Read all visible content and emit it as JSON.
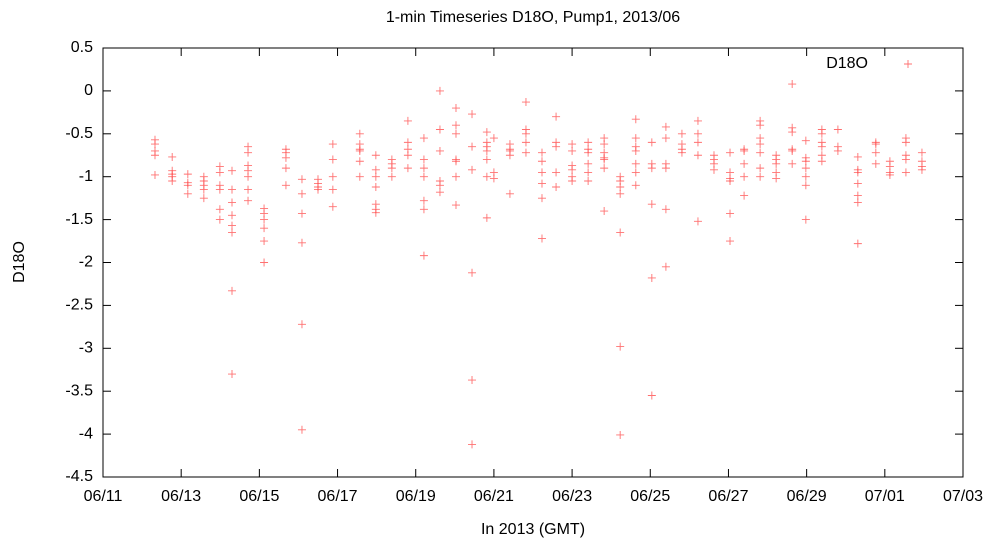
{
  "chart_data": {
    "type": "scatter",
    "title": "1-min Timeseries D18O, Pump1, 2013/06",
    "x_label": "In 2013 (GMT)",
    "y_label": "D18O",
    "legend": "top-right",
    "xlim": [
      11,
      33
    ],
    "xticks": [
      {
        "value": 11,
        "label": "06/11"
      },
      {
        "value": 13,
        "label": "06/13"
      },
      {
        "value": 15,
        "label": "06/15"
      },
      {
        "value": 17,
        "label": "06/17"
      },
      {
        "value": 19,
        "label": "06/19"
      },
      {
        "value": 21,
        "label": "06/21"
      },
      {
        "value": 23,
        "label": "06/23"
      },
      {
        "value": 25,
        "label": "06/25"
      },
      {
        "value": 27,
        "label": "06/27"
      },
      {
        "value": 29,
        "label": "06/29"
      },
      {
        "value": 31,
        "label": "07/01"
      },
      {
        "value": 33,
        "label": "07/03"
      }
    ],
    "ylim": [
      -4.5,
      0.5
    ],
    "yticks": [
      0.5,
      0,
      -0.5,
      -1,
      -1.5,
      -2,
      -2.5,
      -3,
      -3.5,
      -4,
      -4.5
    ],
    "series": [
      {
        "name": "D18O",
        "color": "#ff4040",
        "x": [
          12.33,
          12.33,
          12.33,
          12.33,
          12.33,
          12.77,
          12.77,
          12.77,
          12.77,
          12.77,
          13.17,
          13.17,
          13.17,
          13.17,
          13.58,
          13.58,
          13.58,
          13.58,
          13.58,
          13.99,
          13.99,
          13.99,
          13.99,
          13.99,
          13.99,
          14.3,
          14.3,
          14.3,
          14.3,
          14.3,
          14.3,
          14.3,
          14.3,
          14.71,
          14.71,
          14.71,
          14.71,
          14.71,
          14.71,
          14.71,
          15.12,
          15.12,
          15.12,
          15.12,
          15.12,
          15.12,
          15.68,
          15.68,
          15.68,
          15.68,
          15.68,
          16.09,
          16.09,
          16.09,
          16.09,
          16.09,
          16.09,
          16.5,
          16.5,
          16.5,
          16.5,
          16.88,
          16.88,
          16.88,
          16.88,
          16.88,
          17.57,
          17.57,
          17.57,
          17.57,
          17.57,
          17.57,
          17.98,
          17.98,
          17.98,
          17.98,
          17.98,
          17.98,
          17.98,
          18.39,
          18.39,
          18.39,
          18.39,
          18.8,
          18.8,
          18.8,
          18.8,
          18.8,
          19.21,
          19.21,
          19.21,
          19.21,
          19.21,
          19.21,
          19.21,
          19.62,
          19.62,
          19.62,
          19.62,
          19.62,
          19.62,
          20.03,
          20.03,
          20.03,
          20.03,
          20.03,
          20.03,
          20.03,
          20.44,
          20.44,
          20.44,
          20.44,
          20.44,
          20.44,
          20.82,
          20.82,
          20.82,
          20.82,
          20.82,
          20.82,
          20.82,
          21.0,
          21.0,
          21.0,
          21.41,
          21.41,
          21.41,
          21.41,
          21.41,
          21.82,
          21.82,
          21.82,
          21.82,
          21.82,
          22.23,
          22.23,
          22.23,
          22.23,
          22.23,
          22.23,
          22.59,
          22.59,
          22.59,
          22.59,
          22.59,
          23.0,
          23.0,
          23.0,
          23.0,
          23.0,
          23.0,
          23.41,
          23.41,
          23.41,
          23.41,
          23.41,
          23.41,
          23.82,
          23.82,
          23.82,
          23.82,
          23.82,
          23.82,
          23.82,
          24.23,
          24.23,
          24.23,
          24.23,
          24.23,
          24.23,
          24.23,
          24.63,
          24.63,
          24.63,
          24.63,
          24.63,
          24.63,
          24.63,
          25.04,
          25.04,
          25.04,
          25.04,
          25.04,
          25.04,
          25.4,
          25.4,
          25.4,
          25.4,
          25.4,
          25.4,
          25.81,
          25.81,
          25.81,
          25.81,
          26.22,
          26.22,
          26.22,
          26.22,
          26.22,
          26.63,
          26.63,
          26.63,
          26.63,
          27.04,
          27.04,
          27.04,
          27.04,
          27.04,
          27.04,
          27.4,
          27.4,
          27.4,
          27.4,
          27.4,
          27.81,
          27.81,
          27.81,
          27.81,
          27.81,
          27.81,
          27.81,
          28.22,
          28.22,
          28.22,
          28.22,
          28.22,
          28.63,
          28.63,
          28.63,
          28.63,
          28.63,
          28.63,
          28.98,
          28.98,
          28.98,
          28.98,
          28.98,
          28.98,
          28.98,
          29.39,
          29.39,
          29.39,
          29.39,
          29.39,
          29.39,
          29.8,
          29.8,
          29.8,
          30.31,
          30.31,
          30.31,
          30.31,
          30.31,
          30.31,
          30.31,
          30.77,
          30.77,
          30.77,
          30.77,
          31.13,
          31.13,
          31.13,
          31.13,
          31.54,
          31.54,
          31.54,
          31.54,
          31.54,
          31.95,
          31.95,
          31.95,
          31.95
        ],
        "values": [
          -0.57,
          -0.62,
          -0.7,
          -0.75,
          -0.98,
          -0.77,
          -0.93,
          -0.97,
          -1.0,
          -1.05,
          -0.97,
          -1.07,
          -1.1,
          -1.2,
          -1.0,
          -1.05,
          -1.1,
          -1.15,
          -1.25,
          -0.88,
          -0.95,
          -1.1,
          -1.15,
          -1.38,
          -1.5,
          -0.93,
          -1.15,
          -1.3,
          -1.45,
          -1.57,
          -1.65,
          -2.33,
          -3.3,
          -0.65,
          -0.72,
          -0.87,
          -0.93,
          -1.0,
          -1.15,
          -1.28,
          -1.37,
          -1.43,
          -1.5,
          -1.6,
          -1.75,
          -2.0,
          -0.68,
          -0.72,
          -0.78,
          -0.9,
          -1.1,
          -1.03,
          -1.2,
          -1.43,
          -1.77,
          -2.72,
          -3.95,
          -1.03,
          -1.08,
          -1.12,
          -1.15,
          -0.62,
          -0.8,
          -1.0,
          -1.15,
          -1.35,
          -0.5,
          -0.62,
          -0.68,
          -0.7,
          -0.82,
          -1.0,
          -0.75,
          -0.92,
          -1.0,
          -1.12,
          -1.32,
          -1.38,
          -1.42,
          -0.8,
          -0.85,
          -0.9,
          -1.0,
          -0.35,
          -0.6,
          -0.68,
          -0.75,
          -0.9,
          -0.55,
          -0.8,
          -0.9,
          -1.0,
          -1.28,
          -1.38,
          -1.92,
          0.0,
          -0.45,
          -0.7,
          -1.05,
          -1.1,
          -1.18,
          -0.2,
          -0.4,
          -0.5,
          -0.8,
          -0.82,
          -1.0,
          -1.33,
          -0.27,
          -0.65,
          -0.92,
          -2.12,
          -3.37,
          -4.12,
          -0.48,
          -0.6,
          -0.65,
          -0.7,
          -0.8,
          -1.0,
          -1.48,
          -0.55,
          -0.95,
          -1.02,
          -0.62,
          -0.68,
          -0.7,
          -0.75,
          -1.2,
          -0.13,
          -0.45,
          -0.5,
          -0.6,
          -0.72,
          -0.72,
          -0.82,
          -0.95,
          -1.08,
          -1.25,
          -1.72,
          -0.3,
          -0.6,
          -0.65,
          -0.95,
          -1.12,
          -0.62,
          -0.7,
          -0.87,
          -0.92,
          -1.0,
          -1.05,
          -0.6,
          -0.68,
          -0.72,
          -0.85,
          -0.95,
          -1.05,
          -0.55,
          -0.62,
          -0.72,
          -0.78,
          -0.8,
          -0.9,
          -1.4,
          -1.0,
          -1.05,
          -1.12,
          -1.2,
          -1.65,
          -2.98,
          -4.01,
          -0.33,
          -0.55,
          -0.65,
          -0.7,
          -0.85,
          -0.95,
          -1.1,
          -0.6,
          -0.85,
          -0.9,
          -1.32,
          -2.18,
          -3.55,
          -0.42,
          -0.55,
          -0.85,
          -0.9,
          -1.38,
          -2.05,
          -0.5,
          -0.62,
          -0.68,
          -0.72,
          -0.35,
          -0.5,
          -0.6,
          -0.75,
          -1.52,
          -0.75,
          -0.8,
          -0.85,
          -0.92,
          -0.72,
          -0.95,
          -1.02,
          -1.05,
          -1.43,
          -1.75,
          -0.68,
          -0.7,
          -0.85,
          -1.0,
          -1.22,
          -0.35,
          -0.4,
          -0.55,
          -0.62,
          -0.72,
          -0.9,
          -1.0,
          -0.75,
          -0.8,
          -0.85,
          -0.95,
          -1.02,
          0.08,
          -0.43,
          -0.48,
          -0.68,
          -0.7,
          -0.85,
          -0.58,
          -0.78,
          -0.82,
          -0.9,
          -1.0,
          -1.1,
          -1.5,
          -0.45,
          -0.5,
          -0.6,
          -0.65,
          -0.75,
          -0.82,
          -0.45,
          -0.65,
          -0.7,
          -0.77,
          -0.92,
          -0.95,
          -1.08,
          -1.22,
          -1.3,
          -1.78,
          -0.6,
          -0.62,
          -0.72,
          -0.85,
          -0.82,
          -0.88,
          -0.95,
          -0.98,
          -0.55,
          -0.6,
          -0.75,
          -0.8,
          -0.95,
          -0.72,
          -0.82,
          -0.88,
          -0.92
        ]
      }
    ]
  }
}
